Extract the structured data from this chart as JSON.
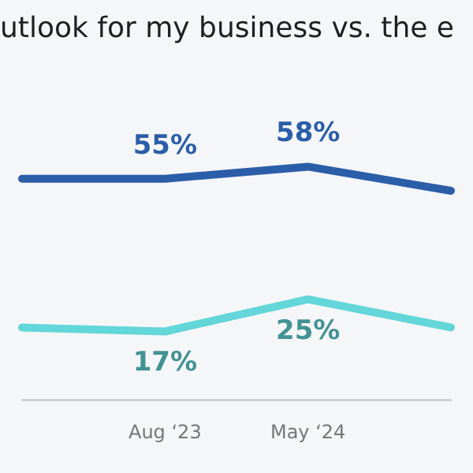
{
  "chart_data": {
    "type": "line",
    "title": "utlook for my business vs. the e",
    "categories": [
      null,
      "Aug ‘23",
      "May ‘24",
      null
    ],
    "series": [
      {
        "color": "#2b5ea8",
        "values": [
          55,
          55,
          58,
          52
        ],
        "value_labels": [
          null,
          "55%",
          "58%",
          null
        ]
      },
      {
        "color": "#62d6d9",
        "values": [
          18,
          17,
          25,
          18
        ],
        "value_labels": [
          null,
          "17%",
          "25%",
          null
        ]
      }
    ],
    "grid": false,
    "legend": false,
    "tick_labels": "x",
    "marker": "none",
    "line_style": "solid"
  }
}
